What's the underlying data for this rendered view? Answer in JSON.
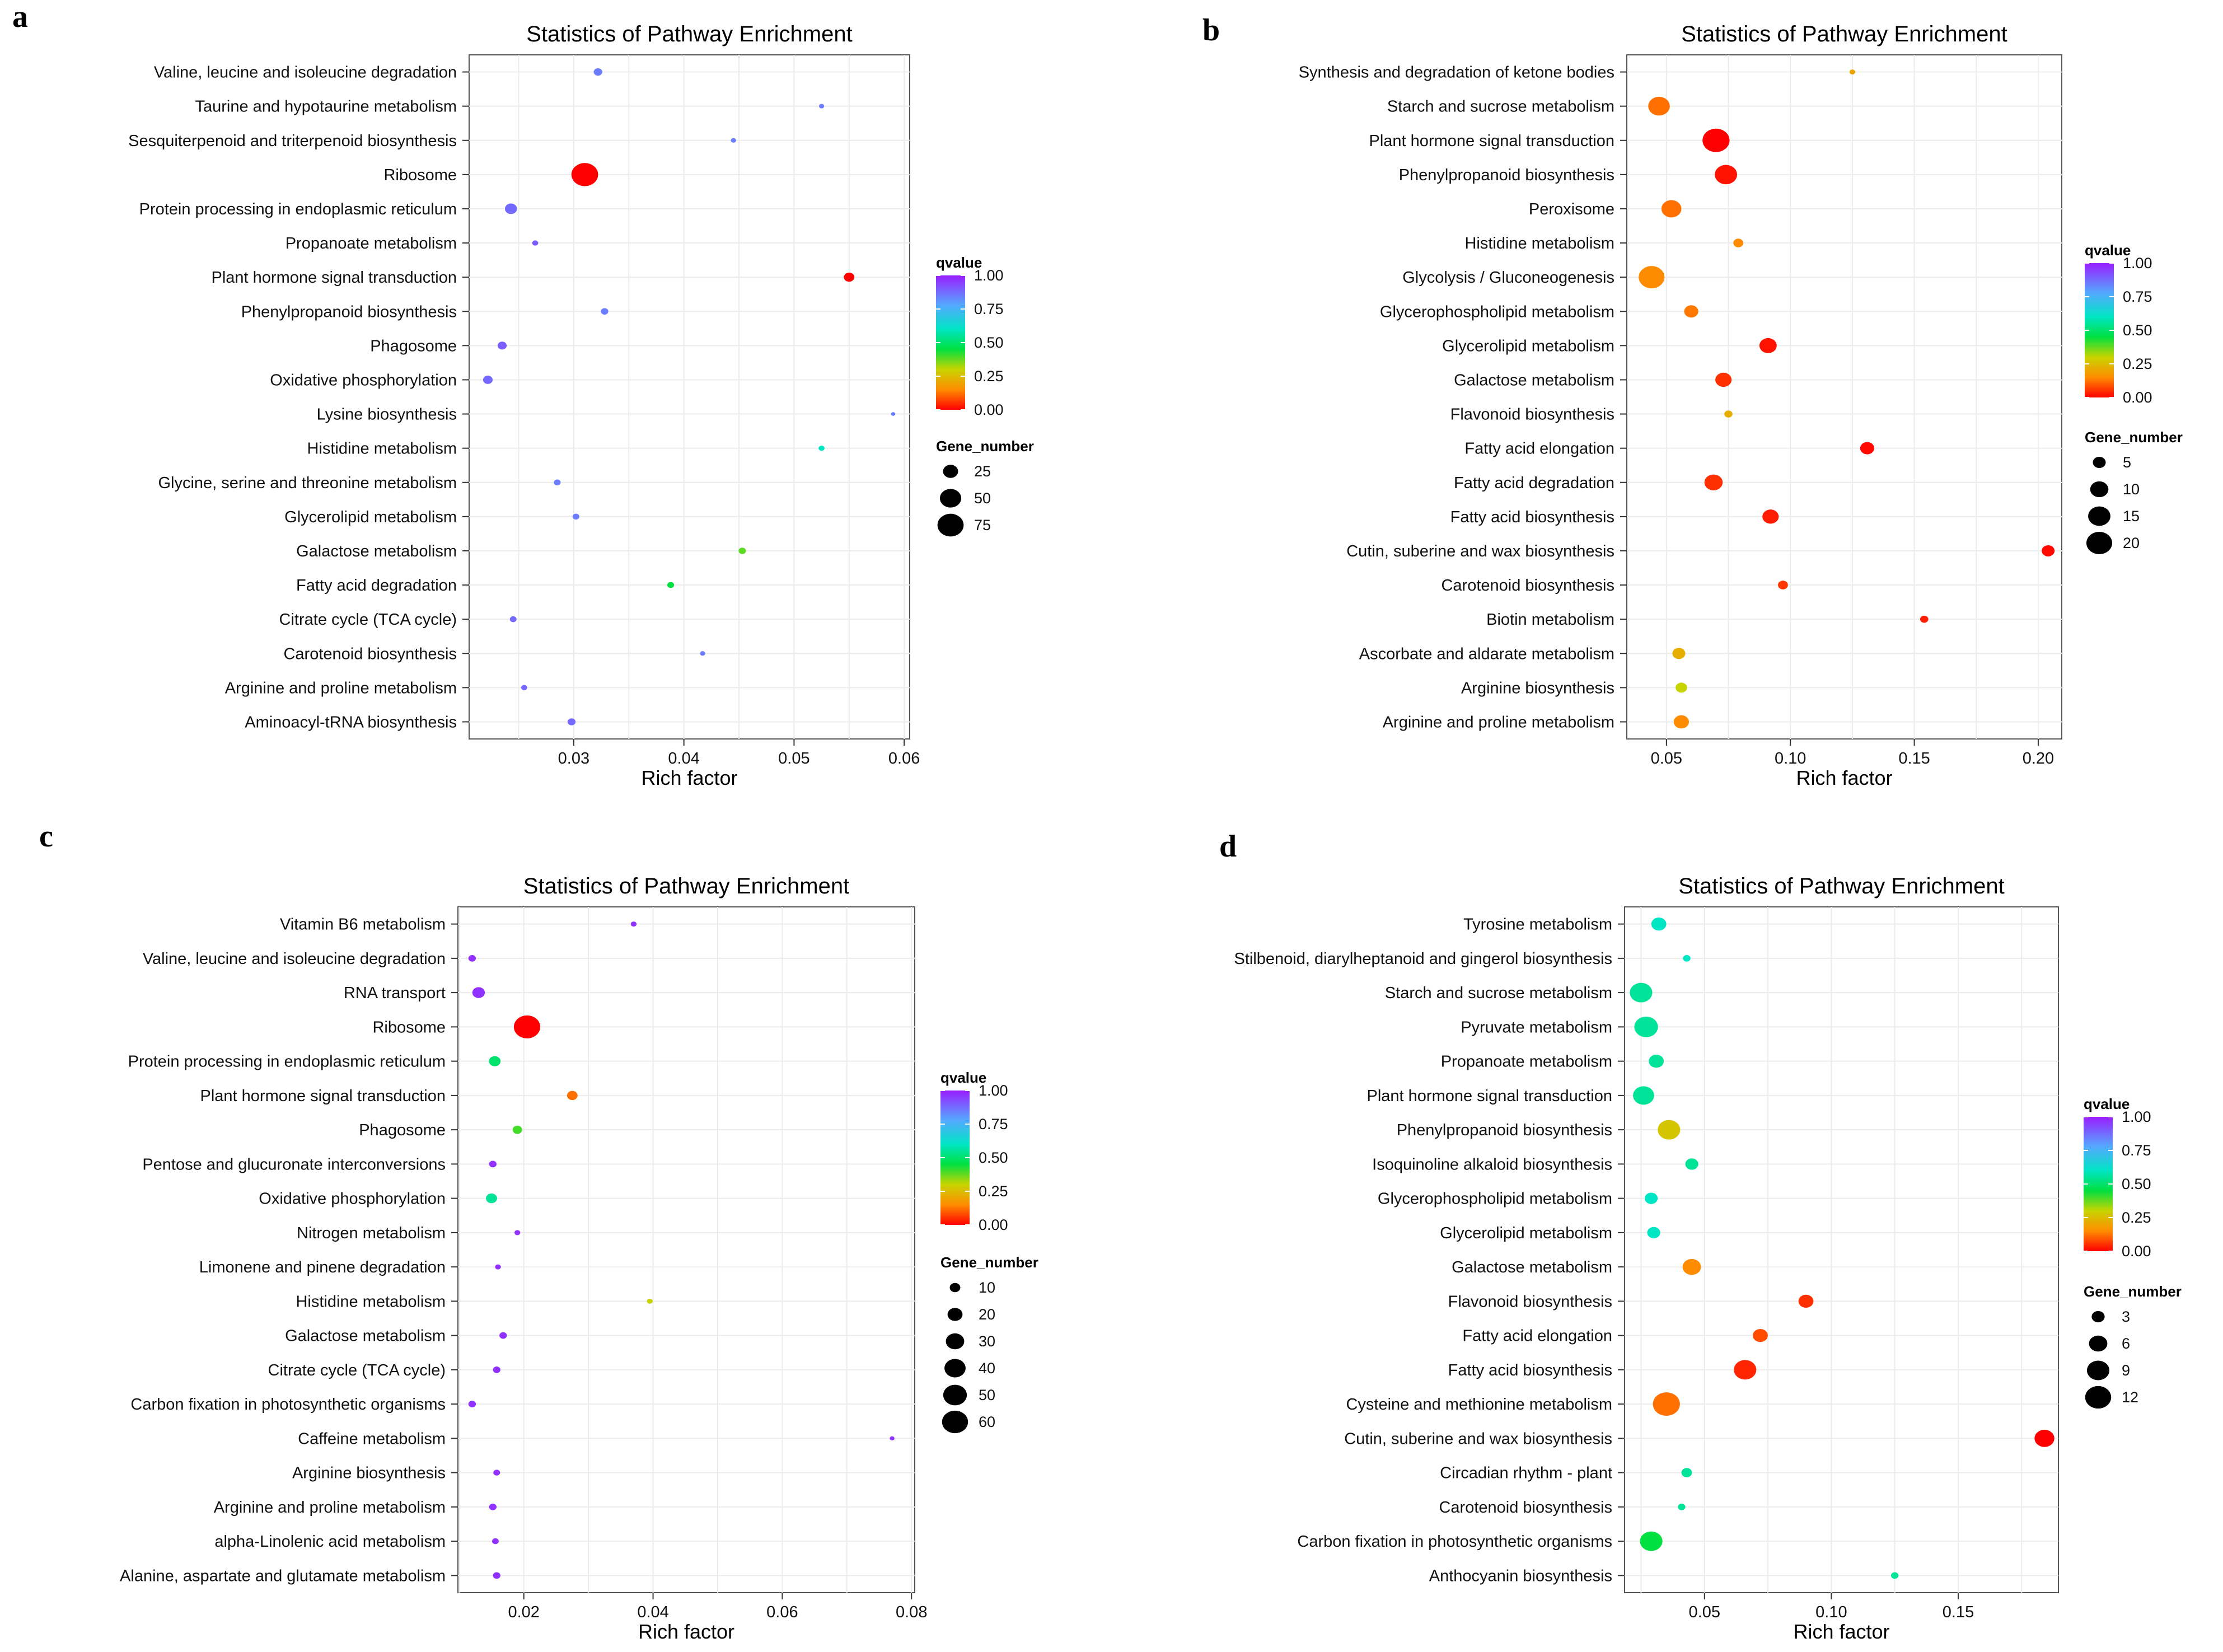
{
  "chart_data": [
    {
      "panel": "a",
      "type": "scatter",
      "title": "Statistics of Pathway Enrichment",
      "xlabel": "Rich factor",
      "ylabel": "",
      "xlim": [
        0.0205,
        0.0605
      ],
      "xticks": [
        0.03,
        0.04,
        0.05,
        0.06
      ],
      "xtick_labels": [
        "0.03",
        "0.04",
        "0.05",
        "0.06"
      ],
      "grid": true,
      "legend_color_title": "qvalue",
      "color_ticks": [
        1.0,
        0.75,
        0.5,
        0.25,
        0.0
      ],
      "color_tick_labels": [
        "1.00",
        "0.75",
        "0.50",
        "0.25",
        "0.00"
      ],
      "legend_size_title": "Gene_number",
      "size_breaks": [
        25,
        50,
        75
      ],
      "size_labels": [
        "25",
        "50",
        "75"
      ],
      "size_range": [
        1,
        80
      ],
      "points": [
        {
          "pathway": "Valine, leucine and isoleucine degradation",
          "rich_factor": 0.0322,
          "qvalue": 0.85,
          "gene_number": 8
        },
        {
          "pathway": "Taurine and hypotaurine metabolism",
          "rich_factor": 0.0525,
          "qvalue": 0.85,
          "gene_number": 3
        },
        {
          "pathway": "Sesquiterpenoid and triterpenoid biosynthesis",
          "rich_factor": 0.0445,
          "qvalue": 0.85,
          "gene_number": 3
        },
        {
          "pathway": "Ribosome",
          "rich_factor": 0.031,
          "qvalue": 0.0,
          "gene_number": 78
        },
        {
          "pathway": "Protein processing in endoplasmic reticulum",
          "rich_factor": 0.0243,
          "qvalue": 0.88,
          "gene_number": 16
        },
        {
          "pathway": "Propanoate metabolism",
          "rich_factor": 0.0265,
          "qvalue": 0.9,
          "gene_number": 4
        },
        {
          "pathway": "Plant hormone signal transduction",
          "rich_factor": 0.055,
          "qvalue": 0.0,
          "gene_number": 12
        },
        {
          "pathway": "Phenylpropanoid biosynthesis",
          "rich_factor": 0.0328,
          "qvalue": 0.85,
          "gene_number": 6
        },
        {
          "pathway": "Phagosome",
          "rich_factor": 0.0235,
          "qvalue": 0.9,
          "gene_number": 9
        },
        {
          "pathway": "Oxidative phosphorylation",
          "rich_factor": 0.0222,
          "qvalue": 0.88,
          "gene_number": 10
        },
        {
          "pathway": "Lysine biosynthesis",
          "rich_factor": 0.059,
          "qvalue": 0.85,
          "gene_number": 2
        },
        {
          "pathway": "Histidine metabolism",
          "rich_factor": 0.0525,
          "qvalue": 0.6,
          "gene_number": 4
        },
        {
          "pathway": "Glycine, serine and threonine metabolism",
          "rich_factor": 0.0285,
          "qvalue": 0.85,
          "gene_number": 5
        },
        {
          "pathway": "Glycerolipid metabolism",
          "rich_factor": 0.0302,
          "qvalue": 0.85,
          "gene_number": 5
        },
        {
          "pathway": "Galactose metabolism",
          "rich_factor": 0.0453,
          "qvalue": 0.38,
          "gene_number": 6
        },
        {
          "pathway": "Fatty acid degradation",
          "rich_factor": 0.0388,
          "qvalue": 0.45,
          "gene_number": 5
        },
        {
          "pathway": "Citrate cycle (TCA cycle)",
          "rich_factor": 0.0245,
          "qvalue": 0.88,
          "gene_number": 5
        },
        {
          "pathway": "Carotenoid biosynthesis",
          "rich_factor": 0.0417,
          "qvalue": 0.85,
          "gene_number": 3
        },
        {
          "pathway": "Arginine and proline metabolism",
          "rich_factor": 0.0255,
          "qvalue": 0.88,
          "gene_number": 4
        },
        {
          "pathway": "Aminoacyl-tRNA biosynthesis",
          "rich_factor": 0.0298,
          "qvalue": 0.88,
          "gene_number": 7
        }
      ]
    },
    {
      "panel": "b",
      "type": "scatter",
      "title": "Statistics of Pathway Enrichment",
      "xlabel": "Rich factor",
      "ylabel": "",
      "xlim": [
        0.034,
        0.2095
      ],
      "xticks": [
        0.05,
        0.1,
        0.15,
        0.2
      ],
      "xtick_labels": [
        "0.05",
        "0.10",
        "0.15",
        "0.20"
      ],
      "grid": true,
      "legend_color_title": "qvalue",
      "color_ticks": [
        1.0,
        0.75,
        0.5,
        0.25,
        0.0
      ],
      "color_tick_labels": [
        "1.00",
        "0.75",
        "0.50",
        "0.25",
        "0.00"
      ],
      "legend_size_title": "Gene_number",
      "size_breaks": [
        5,
        10,
        15,
        20
      ],
      "size_labels": [
        "5",
        "10",
        "15",
        "20"
      ],
      "size_range": [
        1,
        22
      ],
      "points": [
        {
          "pathway": "Synthesis and degradation of ketone bodies",
          "rich_factor": 0.125,
          "qvalue": 0.2,
          "gene_number": 1
        },
        {
          "pathway": "Starch and sucrose metabolism",
          "rich_factor": 0.047,
          "qvalue": 0.12,
          "gene_number": 14
        },
        {
          "pathway": "Plant hormone signal transduction",
          "rich_factor": 0.07,
          "qvalue": 0.0,
          "gene_number": 22
        },
        {
          "pathway": "Phenylpropanoid biosynthesis",
          "rich_factor": 0.074,
          "qvalue": 0.02,
          "gene_number": 15
        },
        {
          "pathway": "Peroxisome",
          "rich_factor": 0.052,
          "qvalue": 0.12,
          "gene_number": 12
        },
        {
          "pathway": "Histidine metabolism",
          "rich_factor": 0.079,
          "qvalue": 0.15,
          "gene_number": 3
        },
        {
          "pathway": "Glycolysis / Gluconeogenesis",
          "rich_factor": 0.044,
          "qvalue": 0.15,
          "gene_number": 20
        },
        {
          "pathway": "Glycerophospholipid metabolism",
          "rich_factor": 0.06,
          "qvalue": 0.13,
          "gene_number": 6
        },
        {
          "pathway": "Glycerolipid metabolism",
          "rich_factor": 0.091,
          "qvalue": 0.02,
          "gene_number": 9
        },
        {
          "pathway": "Galactose metabolism",
          "rich_factor": 0.073,
          "qvalue": 0.05,
          "gene_number": 8
        },
        {
          "pathway": "Flavonoid biosynthesis",
          "rich_factor": 0.075,
          "qvalue": 0.22,
          "gene_number": 2
        },
        {
          "pathway": "Fatty acid elongation",
          "rich_factor": 0.131,
          "qvalue": 0.01,
          "gene_number": 6
        },
        {
          "pathway": "Fatty acid degradation",
          "rich_factor": 0.069,
          "qvalue": 0.05,
          "gene_number": 10
        },
        {
          "pathway": "Fatty acid biosynthesis",
          "rich_factor": 0.092,
          "qvalue": 0.03,
          "gene_number": 8
        },
        {
          "pathway": "Cutin, suberine and wax biosynthesis",
          "rich_factor": 0.204,
          "qvalue": 0.01,
          "gene_number": 5
        },
        {
          "pathway": "Carotenoid biosynthesis",
          "rich_factor": 0.097,
          "qvalue": 0.06,
          "gene_number": 3
        },
        {
          "pathway": "Biotin metabolism",
          "rich_factor": 0.154,
          "qvalue": 0.03,
          "gene_number": 2
        },
        {
          "pathway": "Ascorbate and aldarate metabolism",
          "rich_factor": 0.055,
          "qvalue": 0.22,
          "gene_number": 5
        },
        {
          "pathway": "Arginine biosynthesis",
          "rich_factor": 0.056,
          "qvalue": 0.3,
          "gene_number": 4
        },
        {
          "pathway": "Arginine and proline metabolism",
          "rich_factor": 0.056,
          "qvalue": 0.15,
          "gene_number": 7
        }
      ]
    },
    {
      "panel": "c",
      "type": "scatter",
      "title": "Statistics of Pathway Enrichment",
      "xlabel": "Rich factor",
      "ylabel": "",
      "xlim": [
        0.0098,
        0.0805
      ],
      "xticks": [
        0.02,
        0.04,
        0.06,
        0.08
      ],
      "xtick_labels": [
        "0.02",
        "0.04",
        "0.06",
        "0.08"
      ],
      "grid": true,
      "legend_color_title": "qvalue",
      "color_ticks": [
        1.0,
        0.75,
        0.5,
        0.25,
        0.0
      ],
      "color_tick_labels": [
        "1.00",
        "0.75",
        "0.50",
        "0.25",
        "0.00"
      ],
      "legend_size_title": "Gene_number",
      "size_breaks": [
        10,
        20,
        30,
        40,
        50,
        60
      ],
      "size_labels": [
        "10",
        "20",
        "30",
        "40",
        "50",
        "60"
      ],
      "size_range": [
        1,
        65
      ],
      "points": [
        {
          "pathway": "Vitamin B6 metabolism",
          "rich_factor": 0.037,
          "qvalue": 0.97,
          "gene_number": 3
        },
        {
          "pathway": "Valine, leucine and isoleucine degradation",
          "rich_factor": 0.012,
          "qvalue": 0.97,
          "gene_number": 5
        },
        {
          "pathway": "RNA transport",
          "rich_factor": 0.013,
          "qvalue": 0.97,
          "gene_number": 14
        },
        {
          "pathway": "Ribosome",
          "rich_factor": 0.0205,
          "qvalue": 0.0,
          "gene_number": 62
        },
        {
          "pathway": "Protein processing in endoplasmic reticulum",
          "rich_factor": 0.0155,
          "qvalue": 0.5,
          "gene_number": 12
        },
        {
          "pathway": "Plant hormone signal transduction",
          "rich_factor": 0.0275,
          "qvalue": 0.12,
          "gene_number": 10
        },
        {
          "pathway": "Phagosome",
          "rich_factor": 0.019,
          "qvalue": 0.4,
          "gene_number": 8
        },
        {
          "pathway": "Pentose and glucuronate interconversions",
          "rich_factor": 0.0152,
          "qvalue": 0.97,
          "gene_number": 5
        },
        {
          "pathway": "Oxidative phosphorylation",
          "rich_factor": 0.015,
          "qvalue": 0.55,
          "gene_number": 11
        },
        {
          "pathway": "Nitrogen metabolism",
          "rich_factor": 0.019,
          "qvalue": 0.97,
          "gene_number": 3
        },
        {
          "pathway": "Limonene and pinene degradation",
          "rich_factor": 0.016,
          "qvalue": 0.97,
          "gene_number": 3
        },
        {
          "pathway": "Histidine metabolism",
          "rich_factor": 0.0395,
          "qvalue": 0.3,
          "gene_number": 3
        },
        {
          "pathway": "Galactose metabolism",
          "rich_factor": 0.0168,
          "qvalue": 0.97,
          "gene_number": 5
        },
        {
          "pathway": "Citrate cycle (TCA cycle)",
          "rich_factor": 0.0158,
          "qvalue": 0.97,
          "gene_number": 5
        },
        {
          "pathway": "Carbon fixation in photosynthetic organisms",
          "rich_factor": 0.012,
          "qvalue": 0.97,
          "gene_number": 5
        },
        {
          "pathway": "Caffeine metabolism",
          "rich_factor": 0.077,
          "qvalue": 0.97,
          "gene_number": 2
        },
        {
          "pathway": "Arginine biosynthesis",
          "rich_factor": 0.0158,
          "qvalue": 0.97,
          "gene_number": 4
        },
        {
          "pathway": "Arginine and proline metabolism",
          "rich_factor": 0.0152,
          "qvalue": 0.97,
          "gene_number": 5
        },
        {
          "pathway": "alpha-Linolenic acid metabolism",
          "rich_factor": 0.0156,
          "qvalue": 0.97,
          "gene_number": 4
        },
        {
          "pathway": "Alanine, aspartate and glutamate metabolism",
          "rich_factor": 0.0158,
          "qvalue": 0.97,
          "gene_number": 5
        }
      ]
    },
    {
      "panel": "d",
      "type": "scatter",
      "title": "Statistics of Pathway Enrichment",
      "xlabel": "Rich factor",
      "ylabel": "",
      "xlim": [
        0.0185,
        0.1895
      ],
      "xticks": [
        0.05,
        0.1,
        0.15
      ],
      "xtick_labels": [
        "0.05",
        "0.10",
        "0.15"
      ],
      "grid": true,
      "legend_color_title": "qvalue",
      "color_ticks": [
        1.0,
        0.75,
        0.5,
        0.25,
        0.0
      ],
      "color_tick_labels": [
        "1.00",
        "0.75",
        "0.50",
        "0.25",
        "0.00"
      ],
      "legend_size_title": "Gene_number",
      "size_breaks": [
        3,
        6,
        9,
        12
      ],
      "size_labels": [
        "3",
        "6",
        "9",
        "12"
      ],
      "size_range": [
        1,
        13
      ],
      "points": [
        {
          "pathway": "Tyrosine metabolism",
          "rich_factor": 0.032,
          "qvalue": 0.6,
          "gene_number": 4
        },
        {
          "pathway": "Stilbenoid, diarylheptanoid and gingerol biosynthesis",
          "rich_factor": 0.043,
          "qvalue": 0.6,
          "gene_number": 1
        },
        {
          "pathway": "Starch and sucrose metabolism",
          "rich_factor": 0.025,
          "qvalue": 0.55,
          "gene_number": 9
        },
        {
          "pathway": "Pyruvate metabolism",
          "rich_factor": 0.027,
          "qvalue": 0.55,
          "gene_number": 10
        },
        {
          "pathway": "Propanoate metabolism",
          "rich_factor": 0.031,
          "qvalue": 0.55,
          "gene_number": 4
        },
        {
          "pathway": "Plant hormone signal transduction",
          "rich_factor": 0.026,
          "qvalue": 0.55,
          "gene_number": 8
        },
        {
          "pathway": "Phenylpropanoid biosynthesis",
          "rich_factor": 0.036,
          "qvalue": 0.27,
          "gene_number": 9
        },
        {
          "pathway": "Isoquinoline alkaloid biosynthesis",
          "rich_factor": 0.045,
          "qvalue": 0.55,
          "gene_number": 3
        },
        {
          "pathway": "Glycerophospholipid metabolism",
          "rich_factor": 0.029,
          "qvalue": 0.6,
          "gene_number": 3
        },
        {
          "pathway": "Glycerolipid metabolism",
          "rich_factor": 0.03,
          "qvalue": 0.6,
          "gene_number": 3
        },
        {
          "pathway": "Galactose metabolism",
          "rich_factor": 0.045,
          "qvalue": 0.15,
          "gene_number": 6
        },
        {
          "pathway": "Flavonoid biosynthesis",
          "rich_factor": 0.09,
          "qvalue": 0.05,
          "gene_number": 4
        },
        {
          "pathway": "Fatty acid elongation",
          "rich_factor": 0.072,
          "qvalue": 0.08,
          "gene_number": 4
        },
        {
          "pathway": "Fatty acid biosynthesis",
          "rich_factor": 0.066,
          "qvalue": 0.04,
          "gene_number": 9
        },
        {
          "pathway": "Cysteine and methionine metabolism",
          "rich_factor": 0.035,
          "qvalue": 0.12,
          "gene_number": 13
        },
        {
          "pathway": "Cutin, suberine and wax biosynthesis",
          "rich_factor": 0.184,
          "qvalue": 0.0,
          "gene_number": 7
        },
        {
          "pathway": "Circadian rhythm - plant",
          "rich_factor": 0.043,
          "qvalue": 0.55,
          "gene_number": 2
        },
        {
          "pathway": "Carotenoid biosynthesis",
          "rich_factor": 0.041,
          "qvalue": 0.55,
          "gene_number": 1
        },
        {
          "pathway": "Carbon fixation in photosynthetic organisms",
          "rich_factor": 0.029,
          "qvalue": 0.45,
          "gene_number": 9
        },
        {
          "pathway": "Anthocyanin biosynthesis",
          "rich_factor": 0.125,
          "qvalue": 0.55,
          "gene_number": 1
        }
      ]
    }
  ]
}
